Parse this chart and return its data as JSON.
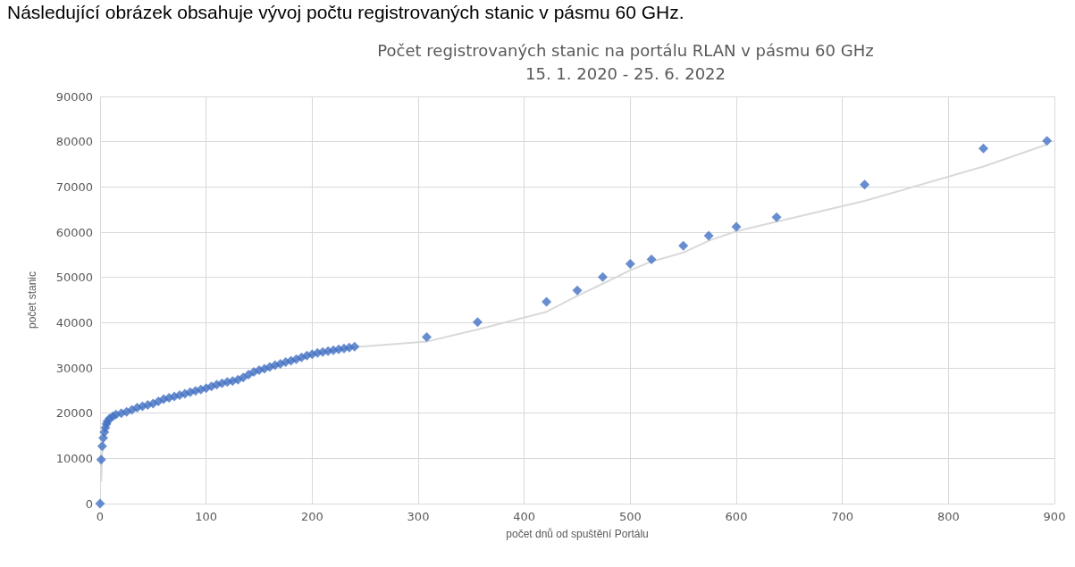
{
  "chart_data": {
    "type": "scatter",
    "title": "Počet registrovaných stanic na portálu RLAN v pásmu 60 GHz",
    "subtitle": "15. 1. 2020 - 25. 6. 2022",
    "xlabel": "počet dnů od spuštění Portálu",
    "ylabel": "počet stanic",
    "annotations": [
      "Následující obrázek obsahuje vývoj počtu registrovaných stanic v pásmu 60 GHz."
    ],
    "xlim": [
      0,
      900
    ],
    "xticks": [
      0,
      100,
      200,
      300,
      400,
      500,
      600,
      700,
      800,
      900
    ],
    "ylim": [
      0,
      90000
    ],
    "yticks": [
      0,
      10000,
      20000,
      30000,
      40000,
      50000,
      60000,
      70000,
      80000,
      90000
    ],
    "grid": true,
    "marker": "diamond",
    "series": [
      {
        "color": "#4472c4",
        "x": [
          0,
          1,
          2,
          3,
          4,
          5,
          6,
          7,
          9,
          12,
          15,
          20,
          25,
          30,
          35,
          40,
          45,
          50,
          55,
          60,
          65,
          70,
          75,
          80,
          85,
          90,
          95,
          100,
          105,
          110,
          115,
          120,
          125,
          130,
          135,
          140,
          145,
          150,
          155,
          160,
          165,
          170,
          175,
          180,
          185,
          190,
          195,
          200,
          205,
          210,
          215,
          220,
          225,
          230,
          235,
          240,
          308,
          356,
          421,
          450,
          474,
          500,
          520,
          550,
          574,
          600,
          638,
          721,
          833,
          893
        ],
        "values": [
          0,
          9700,
          12700,
          14500,
          15800,
          16800,
          17600,
          18200,
          18800,
          19300,
          19700,
          20000,
          20300,
          20700,
          21200,
          21500,
          21800,
          22100,
          22600,
          23100,
          23400,
          23700,
          24000,
          24300,
          24600,
          24900,
          25200,
          25500,
          25900,
          26300,
          26600,
          26900,
          27100,
          27400,
          27900,
          28500,
          29100,
          29500,
          29800,
          30200,
          30600,
          30900,
          31300,
          31600,
          31900,
          32300,
          32700,
          33000,
          33300,
          33500,
          33700,
          33900,
          34100,
          34300,
          34500,
          34700,
          36800,
          40100,
          44600,
          47100,
          50100,
          53000,
          54000,
          57000,
          59200,
          61200,
          63300,
          70500,
          78500,
          80200
        ]
      },
      {
        "type": "line",
        "color": "#d9d9d9",
        "marker": "none",
        "x": [
          1,
          2,
          3,
          4,
          5,
          6,
          7,
          9,
          12,
          15,
          20,
          30,
          50,
          100,
          140,
          150,
          200,
          240,
          308,
          356,
          421,
          450,
          474,
          500,
          520,
          550,
          574,
          600,
          638,
          721,
          833,
          893
        ],
        "values": [
          4900,
          11200,
          13600,
          15200,
          16300,
          17200,
          17900,
          18500,
          19100,
          19500,
          19900,
          20500,
          22000,
          25400,
          28200,
          29300,
          32900,
          34600,
          35800,
          38500,
          42400,
          45900,
          48600,
          51600,
          53500,
          55500,
          58100,
          60200,
          62300,
          66900,
          74500,
          79400
        ]
      }
    ]
  }
}
